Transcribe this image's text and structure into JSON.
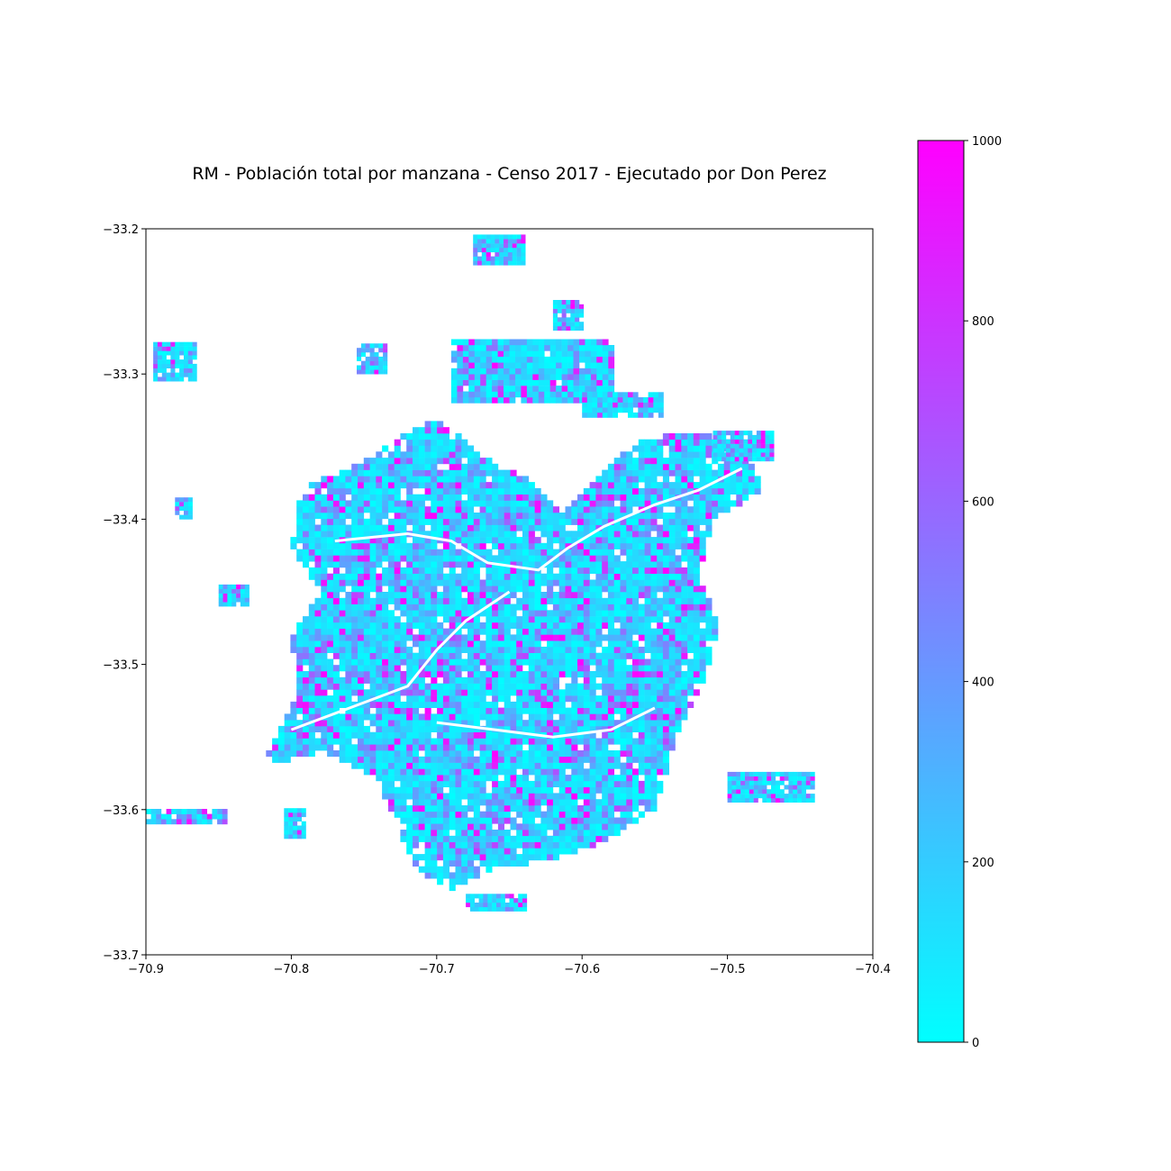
{
  "title": "RM - Población total por manzana - Censo 2017 - Ejecutado por Don Perez",
  "map": {
    "xlim": [
      -70.9,
      -70.4
    ],
    "ylim": [
      -33.7,
      -33.2
    ],
    "x_ticks": [
      {
        "value": -70.9,
        "label": "−70.9"
      },
      {
        "value": -70.8,
        "label": "−70.8"
      },
      {
        "value": -70.7,
        "label": "−70.7"
      },
      {
        "value": -70.6,
        "label": "−70.6"
      },
      {
        "value": -70.5,
        "label": "−70.5"
      },
      {
        "value": -70.4,
        "label": "−70.4"
      }
    ],
    "y_ticks": [
      {
        "value": -33.2,
        "label": "−33.2"
      },
      {
        "value": -33.3,
        "label": "−33.3"
      },
      {
        "value": -33.4,
        "label": "−33.4"
      },
      {
        "value": -33.5,
        "label": "−33.5"
      },
      {
        "value": -33.6,
        "label": "−33.6"
      },
      {
        "value": -33.7,
        "label": "−33.7"
      }
    ],
    "grid": false,
    "colormap": "cool",
    "color_low": "#00ffff",
    "color_high": "#ff00ff"
  },
  "colorbar": {
    "range": [
      0,
      1000
    ],
    "ticks": [
      {
        "value": 0,
        "label": "0"
      },
      {
        "value": 200,
        "label": "200"
      },
      {
        "value": 400,
        "label": "400"
      },
      {
        "value": 600,
        "label": "600"
      },
      {
        "value": 800,
        "label": "800"
      },
      {
        "value": 1000,
        "label": "1000"
      }
    ]
  }
}
